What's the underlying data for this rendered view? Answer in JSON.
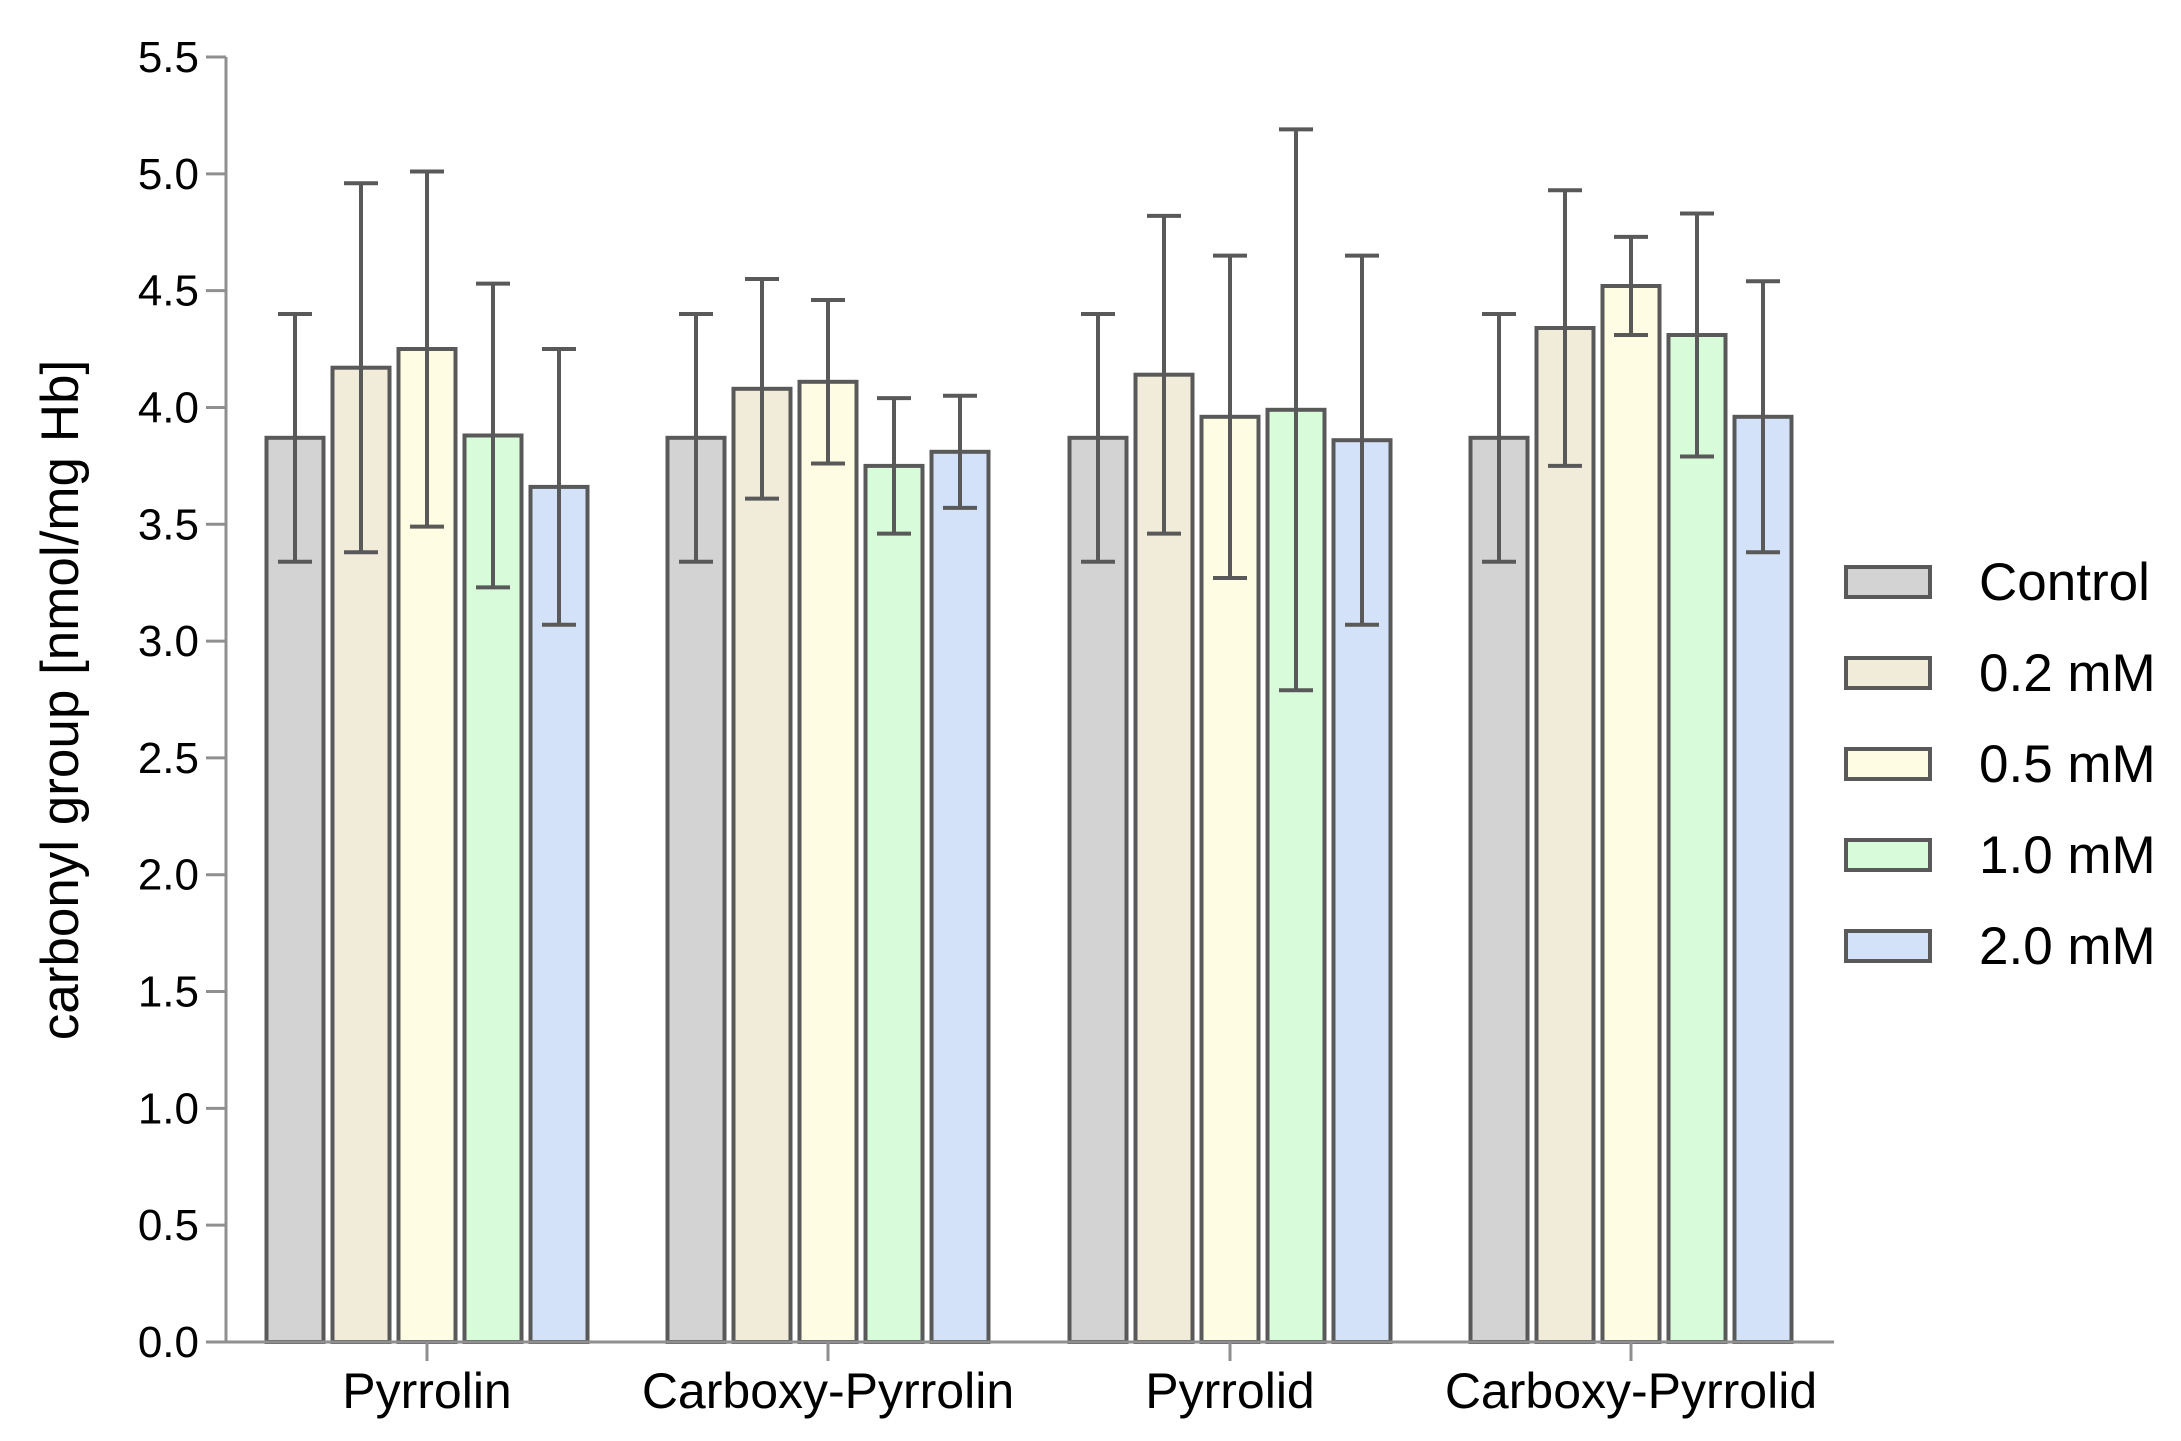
{
  "chart_data": {
    "type": "bar",
    "title": "",
    "xlabel": "",
    "ylabel": "carbonyl group [nmol/mg Hb]",
    "ylim": [
      0,
      5.5
    ],
    "yticks": [
      0,
      0.5,
      1,
      1.5,
      2,
      2.5,
      3,
      3.5,
      4,
      4.5,
      5,
      5.5
    ],
    "ytick_labels": [
      "0.0",
      "0.5",
      "1.0",
      "1.5",
      "2.0",
      "2.5",
      "3.0",
      "3.5",
      "4.0",
      "4.5",
      "5.0",
      "5.5"
    ],
    "grid": false,
    "legend_position": "right",
    "error_bars": true,
    "categories": [
      "Pyrrolin",
      "Carboxy-Pyrrolin",
      "Pyrrolid",
      "Carboxy-Pyrrolid"
    ],
    "series": [
      {
        "name": "Control",
        "color": "#d3d3d3",
        "values": [
          3.87,
          3.87,
          3.87,
          3.87
        ],
        "errors": [
          0.53,
          0.53,
          0.53,
          0.53
        ]
      },
      {
        "name": "0.2 mM",
        "color": "#f1ebda",
        "values": [
          4.17,
          4.08,
          4.14,
          4.34
        ],
        "errors": [
          0.79,
          0.47,
          0.68,
          0.59
        ]
      },
      {
        "name": "0.5 mM",
        "color": "#fefde3",
        "values": [
          4.25,
          4.11,
          3.96,
          4.52
        ],
        "errors": [
          0.76,
          0.35,
          0.69,
          0.21
        ]
      },
      {
        "name": "1.0 mM",
        "color": "#d8fcd9",
        "values": [
          3.88,
          3.75,
          3.99,
          4.31
        ],
        "errors": [
          0.65,
          0.29,
          1.2,
          0.52
        ]
      },
      {
        "name": "2.0 mM",
        "color": "#d3e2f8",
        "values": [
          3.66,
          3.81,
          3.86,
          3.96
        ],
        "errors": [
          0.59,
          0.24,
          0.79,
          0.58
        ]
      }
    ]
  },
  "colors": {
    "axis": "#8f8f8f",
    "bar_edge": "#595959",
    "error_bar": "#595959"
  }
}
